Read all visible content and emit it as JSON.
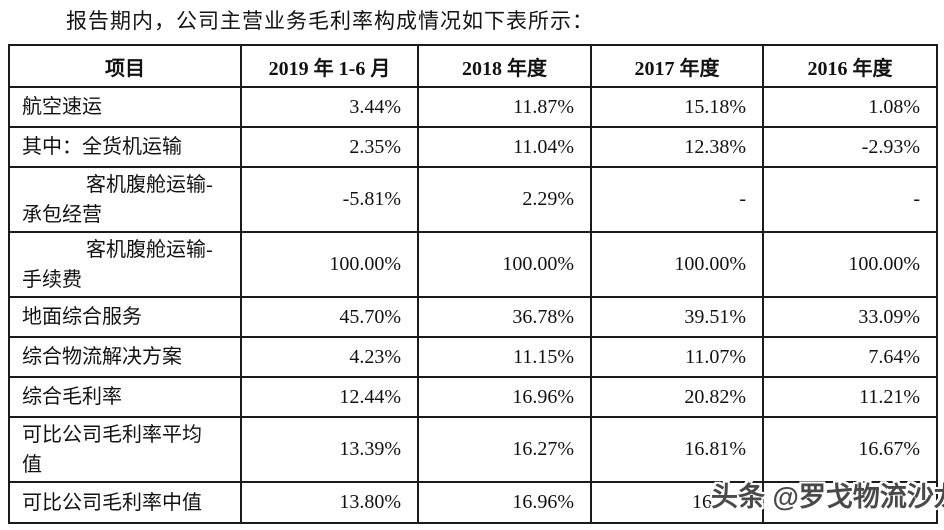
{
  "title": "报告期内，公司主营业务毛利率构成情况如下表所示：",
  "table": {
    "headers": [
      "项目",
      "2019 年 1-6 月",
      "2018 年度",
      "2017 年度",
      "2016 年度"
    ],
    "rows": [
      {
        "label": "航空速运",
        "values": [
          "3.44%",
          "11.87%",
          "15.18%",
          "1.08%"
        ]
      },
      {
        "label": "其中：全货机运输",
        "values": [
          "2.35%",
          "11.04%",
          "12.38%",
          "-2.93%"
        ]
      },
      {
        "label": "客机腹舱运输-\n承包经营",
        "values": [
          "-5.81%",
          "2.29%",
          "-",
          "-"
        ]
      },
      {
        "label": "客机腹舱运输-\n手续费",
        "values": [
          "100.00%",
          "100.00%",
          "100.00%",
          "100.00%"
        ]
      },
      {
        "label": "地面综合服务",
        "values": [
          "45.70%",
          "36.78%",
          "39.51%",
          "33.09%"
        ]
      },
      {
        "label": "综合物流解决方案",
        "values": [
          "4.23%",
          "11.15%",
          "11.07%",
          "7.64%"
        ]
      },
      {
        "label": "综合毛利率",
        "values": [
          "12.44%",
          "16.96%",
          "20.82%",
          "11.21%"
        ]
      },
      {
        "label": "可比公司毛利率平均\n值",
        "values": [
          "13.39%",
          "16.27%",
          "16.81%",
          "16.67%"
        ]
      },
      {
        "label": "可比公司毛利率中值",
        "values": [
          "13.80%",
          "16.96%",
          "16",
          ""
        ]
      }
    ]
  },
  "watermark": "头条 @罗戈物流沙龙"
}
